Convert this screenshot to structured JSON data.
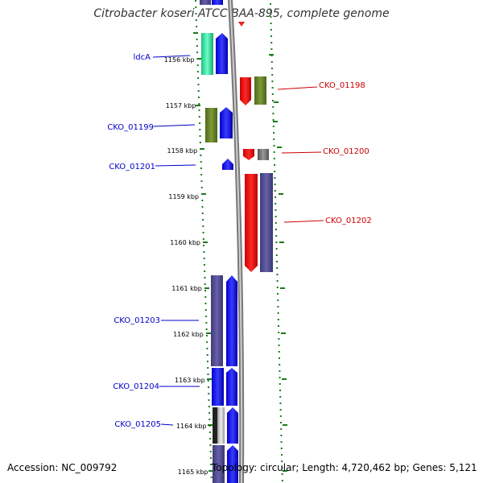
{
  "title": "Citrobacter koseri ATCC BAA-895, complete genome",
  "footer": {
    "accession": "Accession: NC_009792",
    "stats": "Topology: circular; Length: 4,720,462 bp; Genes: 5,121"
  },
  "scale_ticks": [
    "1156 kbp",
    "1157 kbp",
    "1158 kbp",
    "1159 kbp",
    "1160 kbp",
    "1161 kbp",
    "1162 kbp",
    "1163 kbp",
    "1164 kbp",
    "1165 kbp"
  ],
  "colors": {
    "reverse_label": "#0000cc",
    "forward_label": "#cc0000",
    "backbone": "#888888",
    "dots": "#1a7a1a"
  },
  "genes": {
    "ldcA": "ldcA",
    "cko_01198": "CKO_01198",
    "cko_01199": "CKO_01199",
    "cko_01200": "CKO_01200",
    "cko_01201": "CKO_01201",
    "cko_01202": "CKO_01202",
    "cko_01203": "CKO_01203",
    "cko_01204": "CKO_01204",
    "cko_01205": "CKO_01205"
  }
}
